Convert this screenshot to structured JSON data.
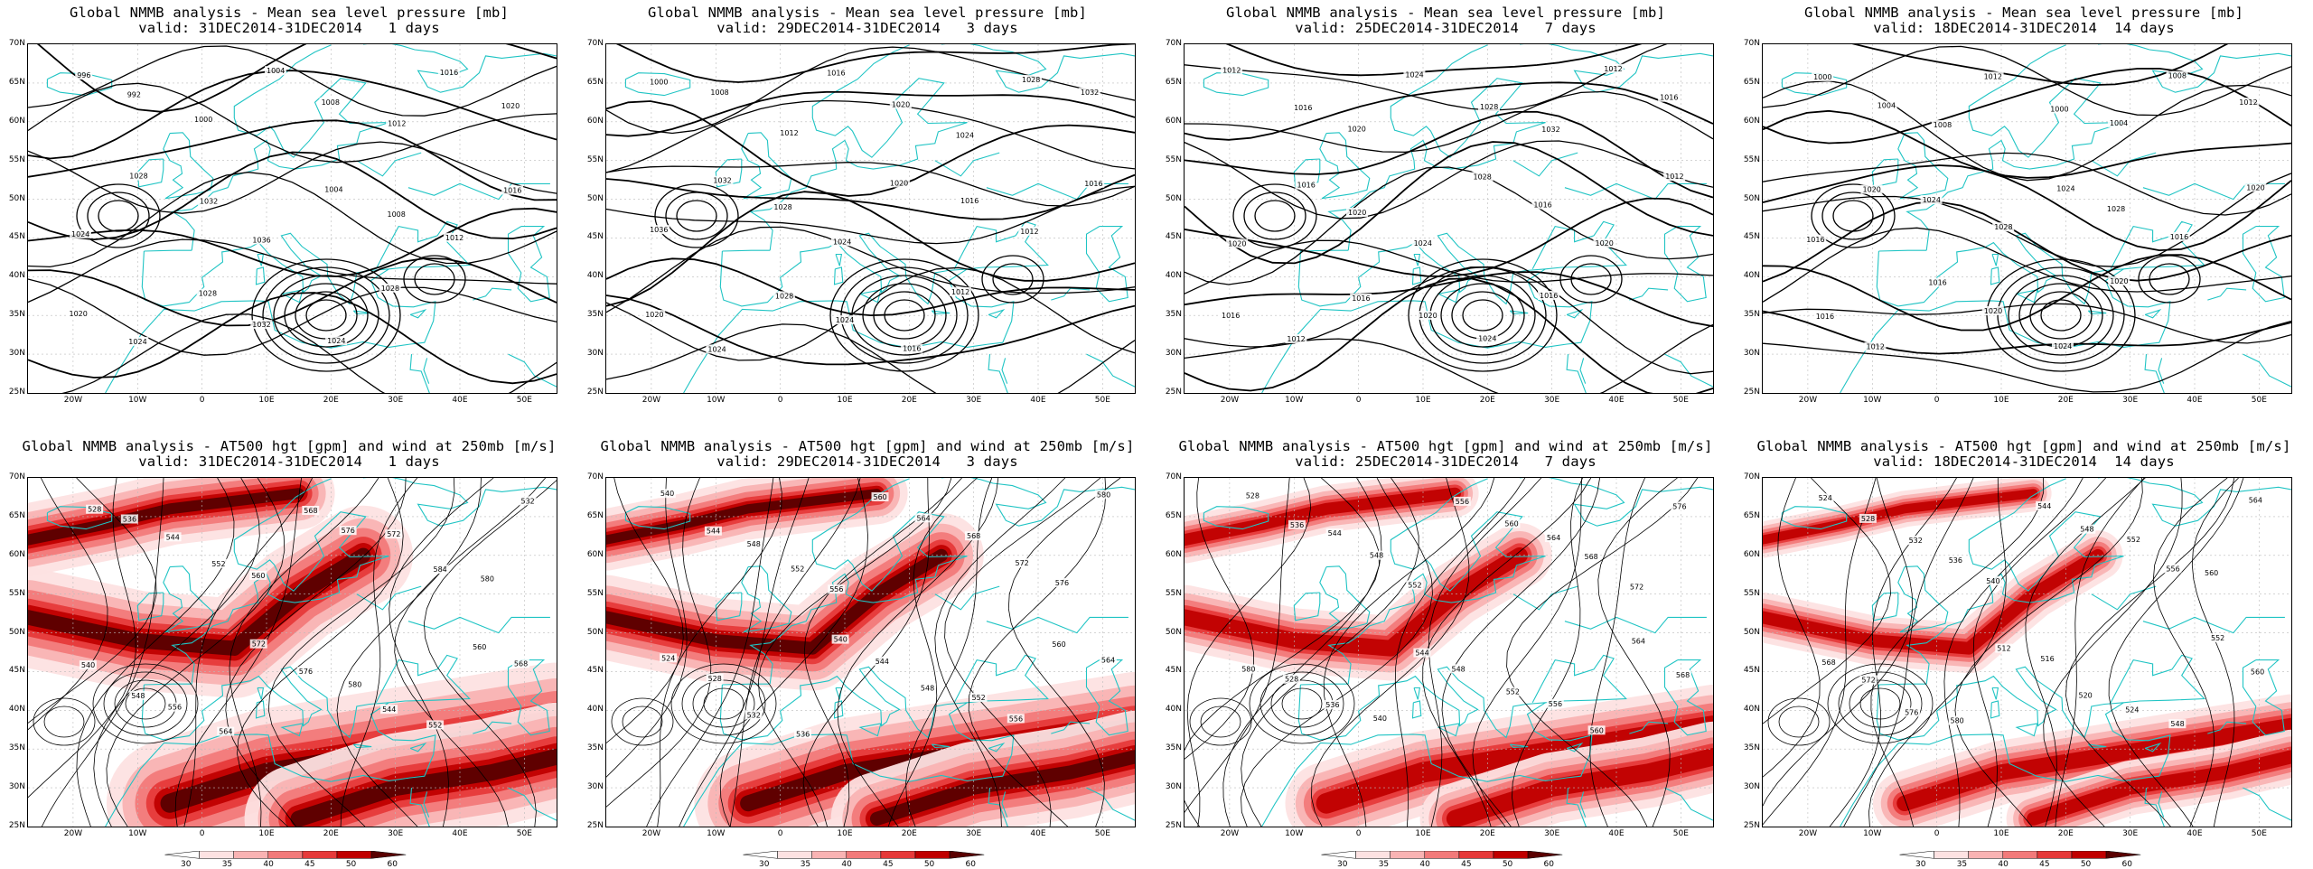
{
  "colors": {
    "coast": "#20c4c4",
    "contour": "#000000",
    "wind_levels": [
      "#ffffff",
      "#fde2e2",
      "#f9b3b3",
      "#f27a7a",
      "#e63a3a",
      "#c00000",
      "#5a0000"
    ]
  },
  "lat_labels": [
    "70N",
    "65N",
    "60N",
    "55N",
    "50N",
    "45N",
    "40N",
    "35N",
    "30N",
    "25N"
  ],
  "lon_labels": [
    "20W",
    "10W",
    "0",
    "10E",
    "20E",
    "30E",
    "40E",
    "50E"
  ],
  "colorbar_labels": [
    "30",
    "35",
    "40",
    "45",
    "50",
    "60"
  ],
  "top_title": "Global NMMB analysis - Mean sea level pressure [mb]",
  "bottom_title": "Global NMMB analysis - AT500 hgt [gpm] and wind at 250mb [m/s]",
  "periods": [
    {
      "valid": "valid: 31DEC2014-31DEC2014   1 days"
    },
    {
      "valid": "valid: 29DEC2014-31DEC2014   3 days"
    },
    {
      "valid": "valid: 25DEC2014-31DEC2014   7 days"
    },
    {
      "valid": "valid: 18DEC2014-31DEC2014  14 days"
    }
  ],
  "mslp_labels": [
    [
      "996",
      "992",
      "1000",
      "1004",
      "1008",
      "1012",
      "1016",
      "1020",
      "1024",
      "1028",
      "1032",
      "1036",
      "1004",
      "1008",
      "1012",
      "1016",
      "1020",
      "1024",
      "1028",
      "1032",
      "1024",
      "1028"
    ],
    [
      "1000",
      "1008",
      "1012",
      "1016",
      "1020",
      "1024",
      "1028",
      "1032",
      "1036",
      "1032",
      "1028",
      "1024",
      "1020",
      "1016",
      "1012",
      "1016",
      "1020",
      "1024",
      "1028",
      "1024",
      "1016",
      "1012"
    ],
    [
      "1012",
      "1016",
      "1020",
      "1024",
      "1028",
      "1032",
      "1012",
      "1016",
      "1020",
      "1016",
      "1020",
      "1024",
      "1028",
      "1016",
      "1020",
      "1012",
      "1016",
      "1012",
      "1016",
      "1020",
      "1024",
      "1016"
    ],
    [
      "1000",
      "1004",
      "1008",
      "1012",
      "1000",
      "1004",
      "1008",
      "1012",
      "1016",
      "1020",
      "1024",
      "1028",
      "1024",
      "1028",
      "1016",
      "1020",
      "1016",
      "1012",
      "1016",
      "1020",
      "1024",
      "1020"
    ]
  ],
  "z500_labels": [
    [
      "528",
      "536",
      "544",
      "552",
      "560",
      "568",
      "576",
      "572",
      "584",
      "580",
      "532",
      "540",
      "548",
      "556",
      "564",
      "572",
      "576",
      "580",
      "544",
      "552",
      "560",
      "568"
    ],
    [
      "540",
      "544",
      "548",
      "552",
      "556",
      "560",
      "564",
      "568",
      "572",
      "576",
      "580",
      "524",
      "528",
      "532",
      "536",
      "540",
      "544",
      "548",
      "552",
      "556",
      "560",
      "564"
    ],
    [
      "528",
      "536",
      "544",
      "548",
      "552",
      "556",
      "560",
      "564",
      "568",
      "572",
      "576",
      "580",
      "528",
      "536",
      "540",
      "544",
      "548",
      "552",
      "556",
      "560",
      "564",
      "568"
    ],
    [
      "524",
      "528",
      "532",
      "536",
      "540",
      "544",
      "548",
      "552",
      "556",
      "560",
      "564",
      "568",
      "572",
      "576",
      "580",
      "512",
      "516",
      "520",
      "524",
      "548",
      "552",
      "560"
    ]
  ]
}
